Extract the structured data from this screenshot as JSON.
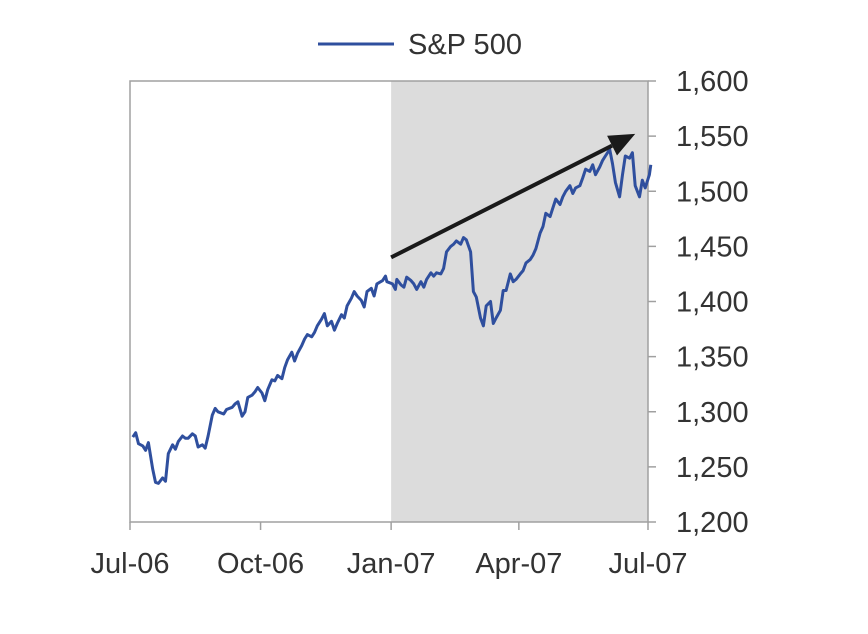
{
  "chart_data": {
    "type": "line",
    "title": "",
    "xlabel": "",
    "ylabel": "",
    "x_ticks": [
      {
        "label": "Jul-06",
        "x": "2006-07-01"
      },
      {
        "label": "Oct-06",
        "x": "2006-10-01"
      },
      {
        "label": "Jan-07",
        "x": "2007-01-01"
      },
      {
        "label": "Apr-07",
        "x": "2007-04-01"
      },
      {
        "label": "Jul-07",
        "x": "2007-07-01"
      }
    ],
    "y_ticks": [
      "1,200",
      "1,250",
      "1,300",
      "1,350",
      "1,400",
      "1,450",
      "1,500",
      "1,550",
      "1,600"
    ],
    "xlim": [
      "2006-07-01",
      "2007-07-01"
    ],
    "ylim": [
      1200,
      1600
    ],
    "y_axis_side": "right",
    "grid": false,
    "legend": "top-center",
    "shaded_region": {
      "from": "2007-01-01",
      "to": "2007-07-01",
      "color": "#dcdcdc"
    },
    "arrow": {
      "from": {
        "x": "2007-01-01",
        "y": 1440
      },
      "to": {
        "x": "2007-06-22",
        "y": 1552
      },
      "color": "#1a1a1a"
    },
    "series": [
      {
        "name": "S&P 500",
        "color": "#2f4f9e",
        "points": [
          [
            "2006-07-03",
            1277
          ],
          [
            "2006-07-05",
            1281
          ],
          [
            "2006-07-07",
            1271
          ],
          [
            "2006-07-10",
            1269
          ],
          [
            "2006-07-12",
            1265
          ],
          [
            "2006-07-14",
            1272
          ],
          [
            "2006-07-17",
            1248
          ],
          [
            "2006-07-19",
            1236
          ],
          [
            "2006-07-21",
            1235
          ],
          [
            "2006-07-24",
            1240
          ],
          [
            "2006-07-26",
            1237
          ],
          [
            "2006-07-28",
            1262
          ],
          [
            "2006-07-31",
            1270
          ],
          [
            "2006-08-02",
            1266
          ],
          [
            "2006-08-04",
            1273
          ],
          [
            "2006-08-07",
            1278
          ],
          [
            "2006-08-09",
            1276
          ],
          [
            "2006-08-11",
            1276
          ],
          [
            "2006-08-14",
            1280
          ],
          [
            "2006-08-16",
            1278
          ],
          [
            "2006-08-18",
            1268
          ],
          [
            "2006-08-21",
            1270
          ],
          [
            "2006-08-23",
            1267
          ],
          [
            "2006-08-25",
            1278
          ],
          [
            "2006-08-28",
            1297
          ],
          [
            "2006-08-30",
            1303
          ],
          [
            "2006-09-01",
            1300
          ],
          [
            "2006-09-05",
            1298
          ],
          [
            "2006-09-07",
            1302
          ],
          [
            "2006-09-11",
            1304
          ],
          [
            "2006-09-13",
            1307
          ],
          [
            "2006-09-15",
            1309
          ],
          [
            "2006-09-18",
            1296
          ],
          [
            "2006-09-20",
            1300
          ],
          [
            "2006-09-22",
            1313
          ],
          [
            "2006-09-25",
            1315
          ],
          [
            "2006-09-27",
            1318
          ],
          [
            "2006-09-29",
            1322
          ],
          [
            "2006-10-02",
            1317
          ],
          [
            "2006-10-04",
            1310
          ],
          [
            "2006-10-06",
            1320
          ],
          [
            "2006-10-09",
            1329
          ],
          [
            "2006-10-11",
            1328
          ],
          [
            "2006-10-13",
            1333
          ],
          [
            "2006-10-16",
            1330
          ],
          [
            "2006-10-18",
            1340
          ],
          [
            "2006-10-20",
            1347
          ],
          [
            "2006-10-23",
            1354
          ],
          [
            "2006-10-25",
            1346
          ],
          [
            "2006-10-27",
            1353
          ],
          [
            "2006-10-30",
            1360
          ],
          [
            "2006-11-01",
            1366
          ],
          [
            "2006-11-03",
            1370
          ],
          [
            "2006-11-06",
            1368
          ],
          [
            "2006-11-08",
            1372
          ],
          [
            "2006-11-10",
            1378
          ],
          [
            "2006-11-13",
            1384
          ],
          [
            "2006-11-15",
            1389
          ],
          [
            "2006-11-17",
            1378
          ],
          [
            "2006-11-20",
            1382
          ],
          [
            "2006-11-22",
            1374
          ],
          [
            "2006-11-24",
            1380
          ],
          [
            "2006-11-27",
            1388
          ],
          [
            "2006-11-29",
            1385
          ],
          [
            "2006-12-01",
            1396
          ],
          [
            "2006-12-04",
            1403
          ],
          [
            "2006-12-06",
            1409
          ],
          [
            "2006-12-08",
            1405
          ],
          [
            "2006-12-11",
            1401
          ],
          [
            "2006-12-13",
            1395
          ],
          [
            "2006-12-15",
            1409
          ],
          [
            "2006-12-18",
            1412
          ],
          [
            "2006-12-20",
            1405
          ],
          [
            "2006-12-22",
            1416
          ],
          [
            "2006-12-26",
            1419
          ],
          [
            "2006-12-28",
            1423
          ],
          [
            "2006-12-29",
            1418
          ],
          [
            "2007-01-02",
            1416
          ],
          [
            "2007-01-04",
            1411
          ],
          [
            "2007-01-05",
            1420
          ],
          [
            "2007-01-08",
            1415
          ],
          [
            "2007-01-10",
            1413
          ],
          [
            "2007-01-12",
            1422
          ],
          [
            "2007-01-15",
            1419
          ],
          [
            "2007-01-17",
            1416
          ],
          [
            "2007-01-19",
            1411
          ],
          [
            "2007-01-22",
            1418
          ],
          [
            "2007-01-24",
            1413
          ],
          [
            "2007-01-26",
            1420
          ],
          [
            "2007-01-29",
            1426
          ],
          [
            "2007-01-31",
            1423
          ],
          [
            "2007-02-02",
            1426
          ],
          [
            "2007-02-05",
            1425
          ],
          [
            "2007-02-07",
            1430
          ],
          [
            "2007-02-09",
            1445
          ],
          [
            "2007-02-12",
            1450
          ],
          [
            "2007-02-14",
            1452
          ],
          [
            "2007-02-16",
            1455
          ],
          [
            "2007-02-19",
            1452
          ],
          [
            "2007-02-21",
            1458
          ],
          [
            "2007-02-23",
            1456
          ],
          [
            "2007-02-26",
            1445
          ],
          [
            "2007-02-28",
            1409
          ],
          [
            "2007-03-02",
            1404
          ],
          [
            "2007-03-05",
            1385
          ],
          [
            "2007-03-07",
            1378
          ],
          [
            "2007-03-09",
            1396
          ],
          [
            "2007-03-12",
            1400
          ],
          [
            "2007-03-14",
            1380
          ],
          [
            "2007-03-16",
            1385
          ],
          [
            "2007-03-19",
            1392
          ],
          [
            "2007-03-21",
            1410
          ],
          [
            "2007-03-23",
            1410
          ],
          [
            "2007-03-26",
            1425
          ],
          [
            "2007-03-28",
            1418
          ],
          [
            "2007-03-30",
            1420
          ],
          [
            "2007-04-02",
            1425
          ],
          [
            "2007-04-04",
            1428
          ],
          [
            "2007-04-06",
            1435
          ],
          [
            "2007-04-09",
            1438
          ],
          [
            "2007-04-11",
            1442
          ],
          [
            "2007-04-13",
            1448
          ],
          [
            "2007-04-16",
            1462
          ],
          [
            "2007-04-18",
            1468
          ],
          [
            "2007-04-20",
            1480
          ],
          [
            "2007-04-23",
            1477
          ],
          [
            "2007-04-25",
            1485
          ],
          [
            "2007-04-27",
            1493
          ],
          [
            "2007-04-30",
            1488
          ],
          [
            "2007-05-02",
            1495
          ],
          [
            "2007-05-04",
            1500
          ],
          [
            "2007-05-07",
            1505
          ],
          [
            "2007-05-09",
            1498
          ],
          [
            "2007-05-11",
            1503
          ],
          [
            "2007-05-14",
            1505
          ],
          [
            "2007-05-16",
            1512
          ],
          [
            "2007-05-18",
            1520
          ],
          [
            "2007-05-21",
            1518
          ],
          [
            "2007-05-23",
            1524
          ],
          [
            "2007-05-25",
            1515
          ],
          [
            "2007-05-28",
            1522
          ],
          [
            "2007-05-30",
            1528
          ],
          [
            "2007-06-01",
            1532
          ],
          [
            "2007-06-04",
            1538
          ],
          [
            "2007-06-06",
            1525
          ],
          [
            "2007-06-08",
            1508
          ],
          [
            "2007-06-11",
            1495
          ],
          [
            "2007-06-13",
            1515
          ],
          [
            "2007-06-15",
            1532
          ],
          [
            "2007-06-18",
            1530
          ],
          [
            "2007-06-20",
            1535
          ],
          [
            "2007-06-22",
            1505
          ],
          [
            "2007-06-25",
            1495
          ],
          [
            "2007-06-27",
            1510
          ],
          [
            "2007-06-29",
            1503
          ],
          [
            "2007-07-02",
            1515
          ],
          [
            "2007-07-03",
            1524
          ]
        ]
      }
    ]
  }
}
